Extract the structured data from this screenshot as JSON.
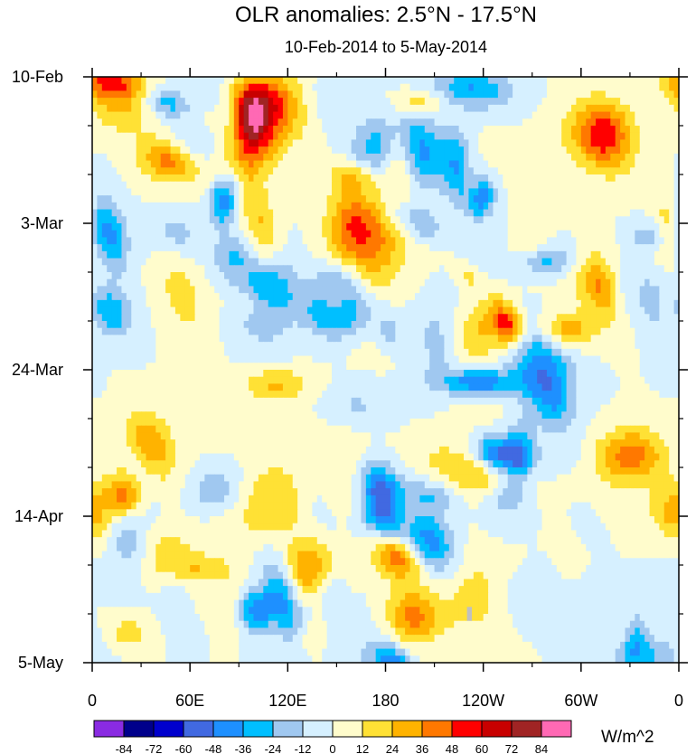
{
  "chart_data": {
    "type": "heatmap",
    "title": "OLR anomalies: 2.5°N - 17.5°N",
    "subtitle": "10-Feb-2014 to 5-May-2014",
    "units": "W/m^2",
    "x_ticks": [
      "0",
      "60E",
      "120E",
      "180",
      "120W",
      "60W",
      "0"
    ],
    "x_tick_values": [
      0,
      60,
      120,
      180,
      240,
      300,
      360
    ],
    "xlim": [
      0,
      360
    ],
    "y_ticks": [
      "10-Feb",
      "3-Mar",
      "24-Mar",
      "14-Apr",
      "5-May"
    ],
    "y_tick_values": [
      0,
      21,
      42,
      63,
      84
    ],
    "ylim": [
      0,
      84
    ],
    "colorbar": {
      "levels": [
        -84,
        -72,
        -60,
        -48,
        -36,
        -24,
        -12,
        0,
        12,
        24,
        36,
        48,
        60,
        72,
        84
      ],
      "colors": [
        "#8a2be2",
        "#00008b",
        "#0000cd",
        "#4169e1",
        "#1e90ff",
        "#00bfff",
        "#a0c8f0",
        "#d6f0ff",
        "#fffccc",
        "#ffe135",
        "#ffb300",
        "#ff7800",
        "#ff0000",
        "#c80000",
        "#a02424",
        "#ff69b4"
      ]
    },
    "missing_color": "#c0c0c0",
    "missing_cells": [
      {
        "lon": 230,
        "day": 76
      }
    ]
  }
}
